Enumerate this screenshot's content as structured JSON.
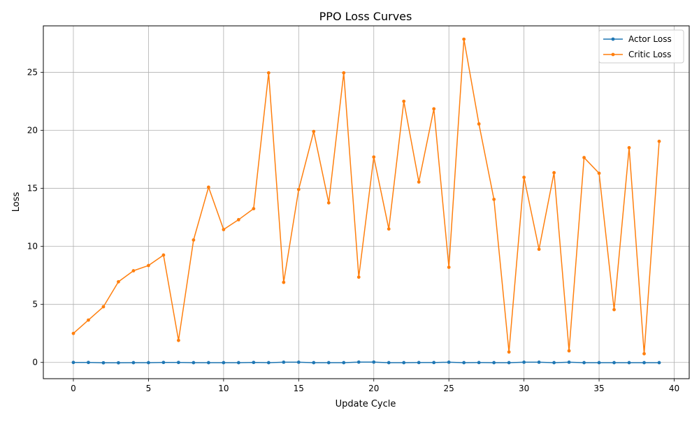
{
  "chart_data": {
    "type": "line",
    "title": "PPO Loss Curves",
    "xlabel": "Update Cycle",
    "ylabel": "Loss",
    "xlim": [
      -2,
      41
    ],
    "ylim": [
      -1.4,
      29.0
    ],
    "x_ticks": [
      0,
      5,
      10,
      15,
      20,
      25,
      30,
      35,
      40
    ],
    "y_ticks": [
      0,
      5,
      10,
      15,
      20,
      25
    ],
    "grid": true,
    "legend_position": "top-right",
    "x": [
      0,
      1,
      2,
      3,
      4,
      5,
      6,
      7,
      8,
      9,
      10,
      11,
      12,
      13,
      14,
      15,
      16,
      17,
      18,
      19,
      20,
      21,
      22,
      23,
      24,
      25,
      26,
      27,
      28,
      29,
      30,
      31,
      32,
      33,
      34,
      35,
      36,
      37,
      38,
      39
    ],
    "series": [
      {
        "name": "Actor Loss",
        "color": "#1f77b4",
        "marker": "dot",
        "values": [
          0.0,
          0.0,
          -0.03,
          -0.03,
          -0.02,
          -0.02,
          0.0,
          0.0,
          -0.02,
          -0.02,
          -0.02,
          -0.02,
          0.0,
          -0.02,
          0.02,
          0.02,
          -0.02,
          -0.02,
          -0.02,
          0.03,
          0.03,
          -0.02,
          -0.02,
          -0.01,
          -0.01,
          0.02,
          -0.02,
          -0.01,
          -0.02,
          -0.02,
          0.02,
          0.02,
          -0.02,
          0.02,
          -0.02,
          -0.02,
          -0.02,
          -0.02,
          -0.02,
          -0.02
        ]
      },
      {
        "name": "Critic Loss",
        "color": "#ff7f0e",
        "marker": "dot",
        "values": [
          2.5,
          3.65,
          4.8,
          6.95,
          7.9,
          8.35,
          9.25,
          1.9,
          10.55,
          15.1,
          11.45,
          12.3,
          13.25,
          24.95,
          6.9,
          14.9,
          19.9,
          13.75,
          24.95,
          7.35,
          17.7,
          11.5,
          22.5,
          15.55,
          21.85,
          8.2,
          27.85,
          20.55,
          14.05,
          0.9,
          15.95,
          9.75,
          16.35,
          1.0,
          17.65,
          16.3,
          4.55,
          18.5,
          0.75,
          19.05
        ]
      }
    ]
  }
}
